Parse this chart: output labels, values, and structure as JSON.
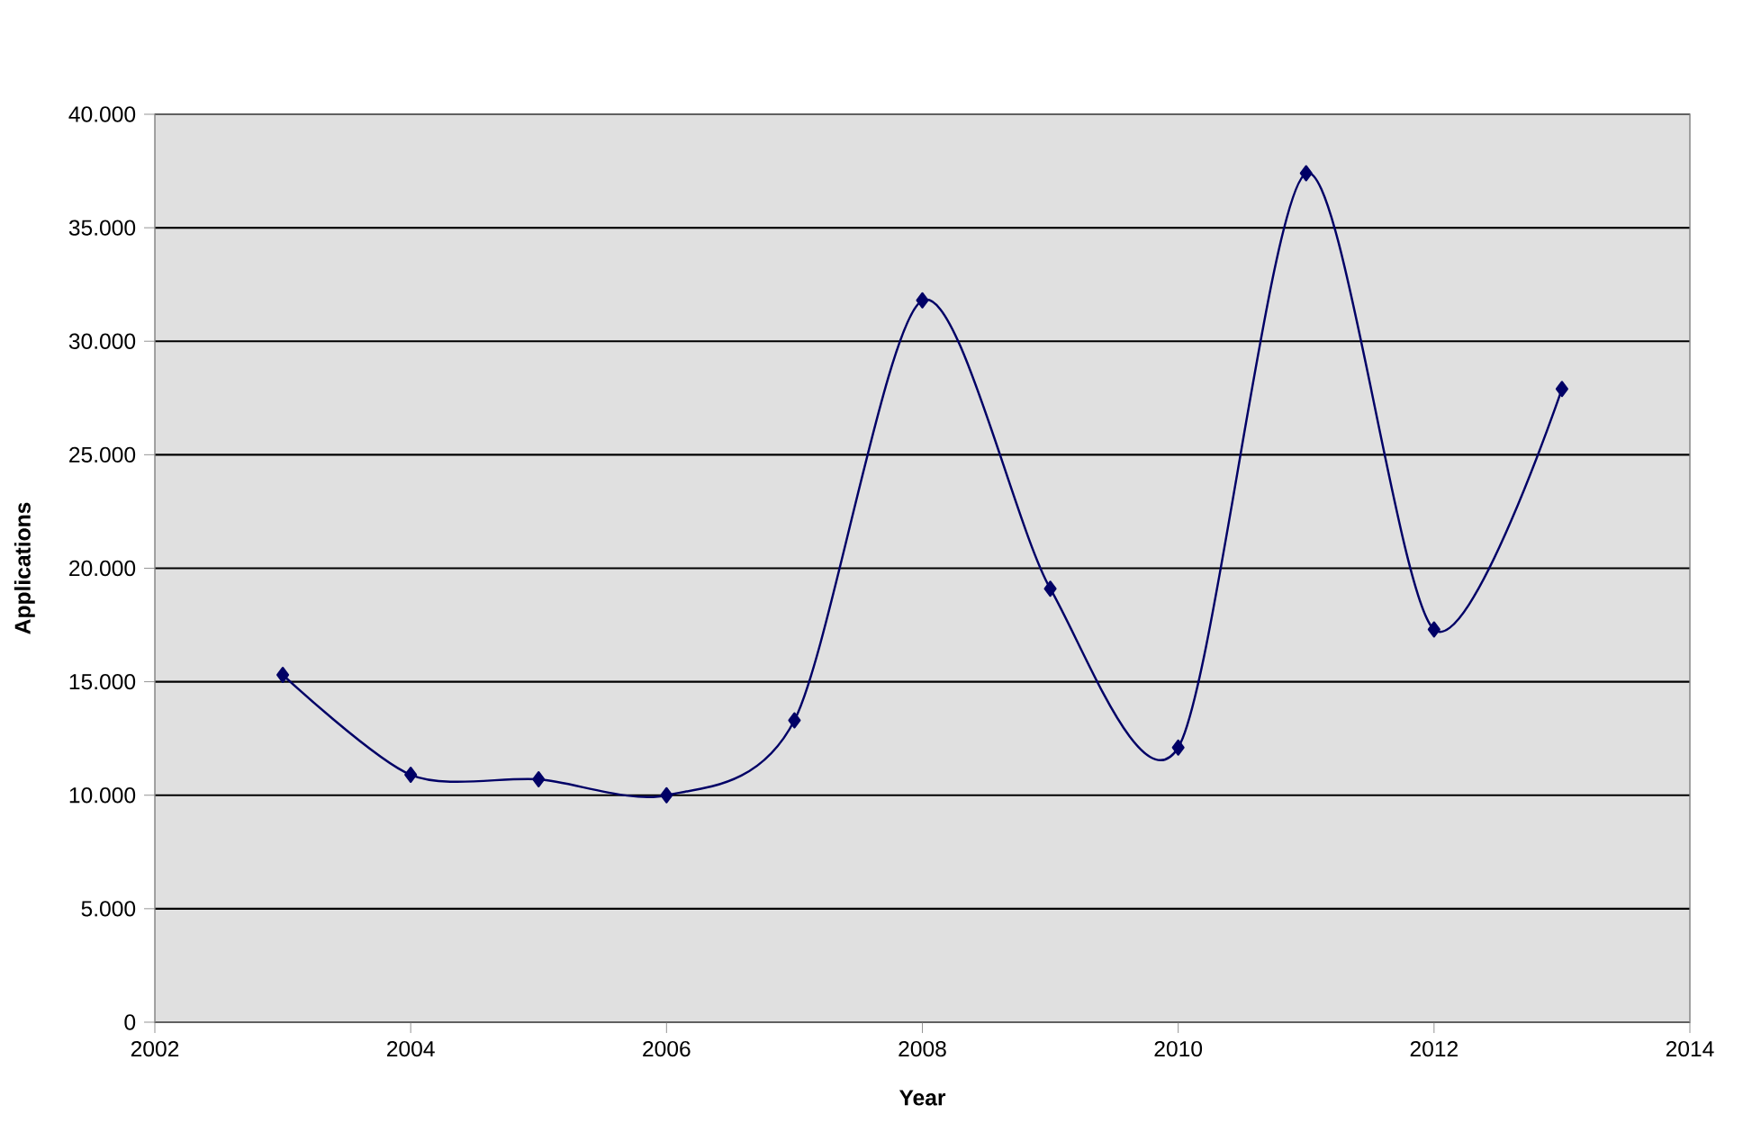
{
  "chart_data": {
    "type": "line",
    "xlabel": "Year",
    "ylabel": "Applications",
    "x": [
      2003,
      2004,
      2005,
      2006,
      2007,
      2008,
      2009,
      2010,
      2011,
      2012,
      2013
    ],
    "series": [
      {
        "color": "#000066",
        "values": [
          15300,
          10900,
          10700,
          10000,
          13300,
          31800,
          19100,
          12100,
          37400,
          17300,
          27900
        ]
      }
    ],
    "xlim": [
      2002,
      2014
    ],
    "xticks": [
      2002,
      2004,
      2006,
      2008,
      2010,
      2012,
      2014
    ],
    "ylim": [
      0,
      40000
    ],
    "yticks": [
      0,
      {
        "value": 5000,
        "label": "5.000"
      },
      {
        "value": 10000,
        "label": "10.000"
      },
      {
        "value": 15000,
        "label": "15.000"
      },
      {
        "value": 20000,
        "label": "20.000"
      },
      {
        "value": 25000,
        "label": "25.000"
      },
      {
        "value": 30000,
        "label": "30.000"
      },
      {
        "value": 35000,
        "label": "35.000"
      },
      {
        "value": 40000,
        "label": "40.000"
      }
    ],
    "grid": "y",
    "marker": "diamond",
    "line_style": "solid"
  }
}
